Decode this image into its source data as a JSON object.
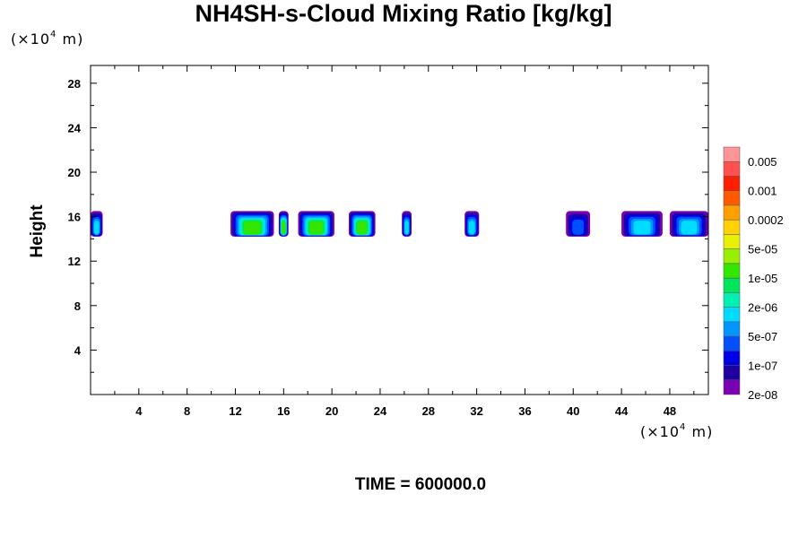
{
  "title": "NH4SH-s-Cloud Mixing Ratio [kg/kg]",
  "unit_y": {
    "prefix": "(×10",
    "exp": "4",
    "suffix": " m)"
  },
  "unit_x": {
    "prefix": "(×10",
    "exp": "4",
    "suffix": " m)"
  },
  "ylabel": "Height",
  "time_label": "TIME = 600000.0",
  "chart_data": {
    "type": "heatmap",
    "title": "NH4SH-s-Cloud Mixing Ratio [kg/kg]",
    "xlabel": "",
    "ylabel": "Height",
    "x_unit": "×10^4 m",
    "y_unit": "×10^4 m",
    "xlim": [
      0,
      51.2
    ],
    "ylim": [
      0,
      29.6
    ],
    "x_ticks": [
      4,
      8,
      12,
      16,
      20,
      24,
      28,
      32,
      36,
      40,
      44,
      48
    ],
    "y_ticks": [
      4,
      8,
      12,
      16,
      20,
      24,
      28
    ],
    "colorbar": {
      "labels": [
        "0.005",
        "0.001",
        "0.0002",
        "5e-05",
        "1e-05",
        "2e-06",
        "5e-07",
        "1e-07",
        "2e-08"
      ],
      "colors": [
        "#7a00b4",
        "#1e00a0",
        "#0000e6",
        "#0050ff",
        "#0096ff",
        "#00dcff",
        "#00f0b4",
        "#00e65a",
        "#32e600",
        "#96f000",
        "#e6f000",
        "#ffd200",
        "#ffa000",
        "#ff5a00",
        "#ff1e00",
        "#ff5050",
        "#ff9696"
      ]
    },
    "cloud_layer": {
      "base_height": 14.2,
      "top_height": 16.5,
      "segments": [
        {
          "x_start": 0.0,
          "x_end": 1.0,
          "max_level": "5e-07"
        },
        {
          "x_start": 11.6,
          "x_end": 15.2,
          "max_level": "1e-05"
        },
        {
          "x_start": 15.6,
          "x_end": 16.4,
          "max_level": "1e-05"
        },
        {
          "x_start": 17.2,
          "x_end": 20.2,
          "max_level": "1e-05"
        },
        {
          "x_start": 21.4,
          "x_end": 23.6,
          "max_level": "1e-05"
        },
        {
          "x_start": 25.8,
          "x_end": 26.6,
          "max_level": "5e-07"
        },
        {
          "x_start": 31.0,
          "x_end": 32.2,
          "max_level": "5e-07"
        },
        {
          "x_start": 39.4,
          "x_end": 41.4,
          "max_level": "1e-07"
        },
        {
          "x_start": 44.0,
          "x_end": 47.4,
          "max_level": "5e-07"
        },
        {
          "x_start": 48.0,
          "x_end": 51.2,
          "max_level": "5e-07"
        }
      ]
    }
  }
}
